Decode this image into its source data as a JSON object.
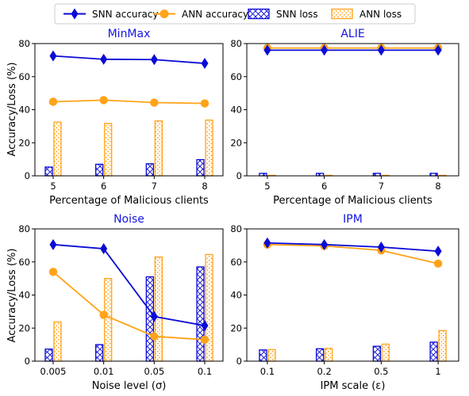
{
  "legend": [
    {
      "key": "snn_acc",
      "label": "SNN accuracy",
      "kind": "line",
      "marker": "diamond",
      "color": "#0b0bd6"
    },
    {
      "key": "ann_acc",
      "label": "ANN accuracy",
      "kind": "line",
      "marker": "circle",
      "color": "#ffa319"
    },
    {
      "key": "snn_loss",
      "label": "SNN loss",
      "kind": "bar",
      "pattern": "cross",
      "color": "#0b0bd6"
    },
    {
      "key": "ann_loss",
      "label": "ANN loss",
      "kind": "bar",
      "pattern": "dots",
      "color": "#ffa319"
    }
  ],
  "shared": {
    "ylabel": "Accuracy/Loss (%)",
    "ylim": [
      0,
      80
    ],
    "yticks": [
      0,
      20,
      40,
      60,
      80
    ],
    "title_color": "#1515e0"
  },
  "chart_data": [
    {
      "type": "bar",
      "title": "MinMax",
      "xlabel": "Percentage of Malicious clients",
      "categories": [
        "5",
        "6",
        "7",
        "8"
      ],
      "ylim": [
        0,
        80
      ],
      "series": [
        {
          "name": "SNN accuracy",
          "kind": "line",
          "values": [
            72.5,
            70.5,
            70.3,
            68.0
          ]
        },
        {
          "name": "ANN accuracy",
          "kind": "line",
          "values": [
            44.8,
            45.8,
            44.3,
            43.8
          ]
        },
        {
          "name": "SNN loss",
          "kind": "bar",
          "values": [
            5.3,
            7.0,
            7.3,
            9.8
          ]
        },
        {
          "name": "ANN loss",
          "kind": "bar",
          "values": [
            32.5,
            31.7,
            33.2,
            33.7
          ]
        }
      ]
    },
    {
      "type": "bar",
      "title": "ALIE",
      "xlabel": "Percentage of Malicious clients",
      "categories": [
        "5",
        "6",
        "7",
        "8"
      ],
      "ylim": [
        0,
        80
      ],
      "series": [
        {
          "name": "SNN accuracy",
          "kind": "line",
          "values": [
            76.0,
            76.0,
            76.0,
            76.0
          ]
        },
        {
          "name": "ANN accuracy",
          "kind": "line",
          "values": [
            77.3,
            77.3,
            77.3,
            77.3
          ]
        },
        {
          "name": "SNN loss",
          "kind": "bar",
          "values": [
            1.5,
            1.5,
            1.5,
            1.5
          ]
        },
        {
          "name": "ANN loss",
          "kind": "bar",
          "values": [
            0.3,
            0.3,
            0.3,
            0.3
          ]
        }
      ]
    },
    {
      "type": "bar",
      "title": "Noise",
      "xlabel": "Noise level (σ)",
      "categories": [
        "0.005",
        "0.01",
        "0.05",
        "0.1"
      ],
      "ylim": [
        0,
        80
      ],
      "series": [
        {
          "name": "SNN accuracy",
          "kind": "line",
          "values": [
            70.5,
            68.0,
            27.0,
            21.5
          ]
        },
        {
          "name": "ANN accuracy",
          "kind": "line",
          "values": [
            54.0,
            28.0,
            15.0,
            13.0
          ]
        },
        {
          "name": "SNN loss",
          "kind": "bar",
          "values": [
            7.3,
            10.0,
            51.0,
            57.0
          ]
        },
        {
          "name": "ANN loss",
          "kind": "bar",
          "values": [
            23.7,
            50.0,
            63.0,
            64.5
          ]
        }
      ]
    },
    {
      "type": "bar",
      "title": "IPM",
      "xlabel": "IPM scale (ε)",
      "categories": [
        "0.1",
        "0.2",
        "0.5",
        "1"
      ],
      "ylim": [
        0,
        80
      ],
      "series": [
        {
          "name": "SNN accuracy",
          "kind": "line",
          "values": [
            71.5,
            70.5,
            69.0,
            66.5
          ]
        },
        {
          "name": "ANN accuracy",
          "kind": "line",
          "values": [
            70.5,
            69.7,
            67.0,
            59.0
          ]
        },
        {
          "name": "SNN loss",
          "kind": "bar",
          "values": [
            6.8,
            7.5,
            9.0,
            11.5
          ]
        },
        {
          "name": "ANN loss",
          "kind": "bar",
          "values": [
            7.0,
            7.7,
            10.3,
            18.5
          ]
        }
      ]
    }
  ]
}
